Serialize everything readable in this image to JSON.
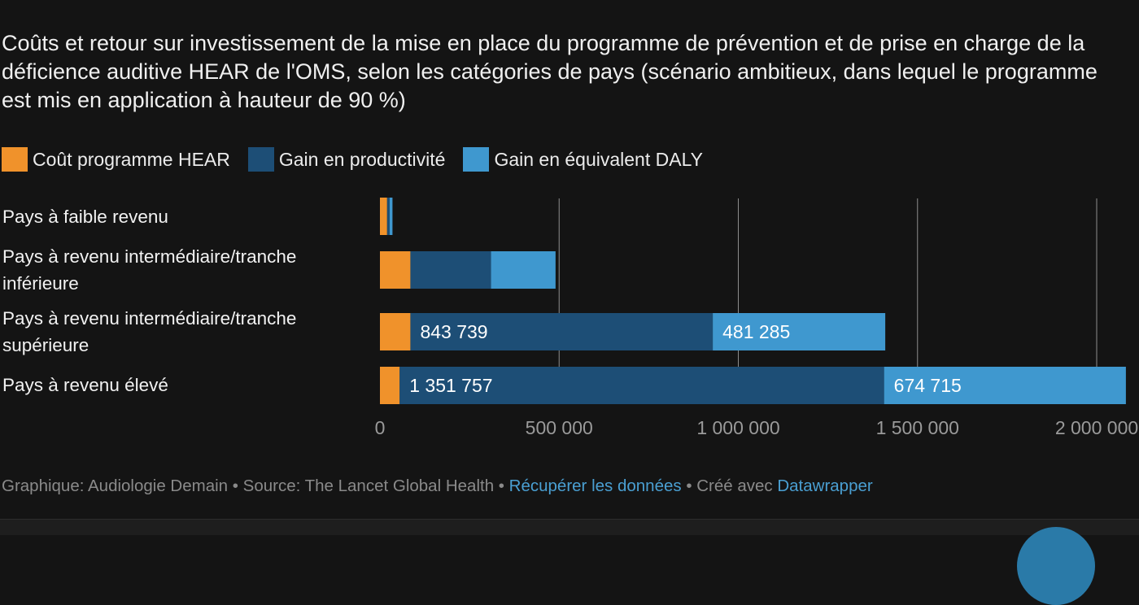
{
  "header": {
    "title": "Coûts et retour sur investissement de la mise en place du programme de prévention et de prise en charge de la déficience auditive HEAR de l'OMS, selon les catégories de pays (scénario ambitieux, dans lequel le programme est mis en application à hauteur de 90 %)"
  },
  "legend": [
    {
      "label": "Coût programme HEAR",
      "color": "#f0922b"
    },
    {
      "label": "Gain en productivité",
      "color": "#1d4e76"
    },
    {
      "label": "Gain en équivalent DALY",
      "color": "#3f98cf"
    }
  ],
  "rows": [
    {
      "label": "Pays à faible revenu"
    },
    {
      "label": "Pays à revenu intermédiaire/tranche inférieure"
    },
    {
      "label": "Pays à revenu intermédiaire/tranche supérieure"
    },
    {
      "label": "Pays à revenu élevé"
    }
  ],
  "chart_data": {
    "type": "bar",
    "orientation": "horizontal",
    "stacked": true,
    "title": "Coûts et retour sur investissement de la mise en place du programme de prévention et de prise en charge de la déficience auditive HEAR de l'OMS, selon les catégories de pays (scénario ambitieux, dans lequel le programme est mis en application à hauteur de 90 %)",
    "categories": [
      "Pays à faible revenu",
      "Pays à revenu intermédiaire/tranche inférieure",
      "Pays à revenu intermédiaire/tranche supérieure",
      "Pays à revenu élevé"
    ],
    "series": [
      {
        "name": "Coût programme HEAR",
        "color": "#f0922b",
        "values": [
          20000,
          85000,
          85000,
          55000
        ],
        "labels": [
          "",
          "",
          "",
          ""
        ]
      },
      {
        "name": "Gain en productivité",
        "color": "#1d4e76",
        "values": [
          7000,
          225000,
          843739,
          1351757
        ],
        "labels": [
          "",
          "",
          "843 739",
          "1 351 757"
        ]
      },
      {
        "name": "Gain en équivalent DALY",
        "color": "#3f98cf",
        "values": [
          8000,
          180000,
          481285,
          674715
        ],
        "labels": [
          "",
          "",
          "481 285",
          "674 715"
        ]
      }
    ],
    "xlim": [
      0,
      2000000
    ],
    "xticks": [
      {
        "value": 0,
        "label": "0"
      },
      {
        "value": 500000,
        "label": "500 000"
      },
      {
        "value": 1000000,
        "label": "1 000 000"
      },
      {
        "value": 1500000,
        "label": "1 500 000"
      },
      {
        "value": 2000000,
        "label": "2 000 000"
      }
    ],
    "grid": true
  },
  "footer": {
    "prefix": "Graphique: Audiologie Demain • Source: The Lancet Global Health • ",
    "data_link": "Récupérer les données",
    "middle": " • Créé avec ",
    "tool_link": "Datawrapper"
  }
}
